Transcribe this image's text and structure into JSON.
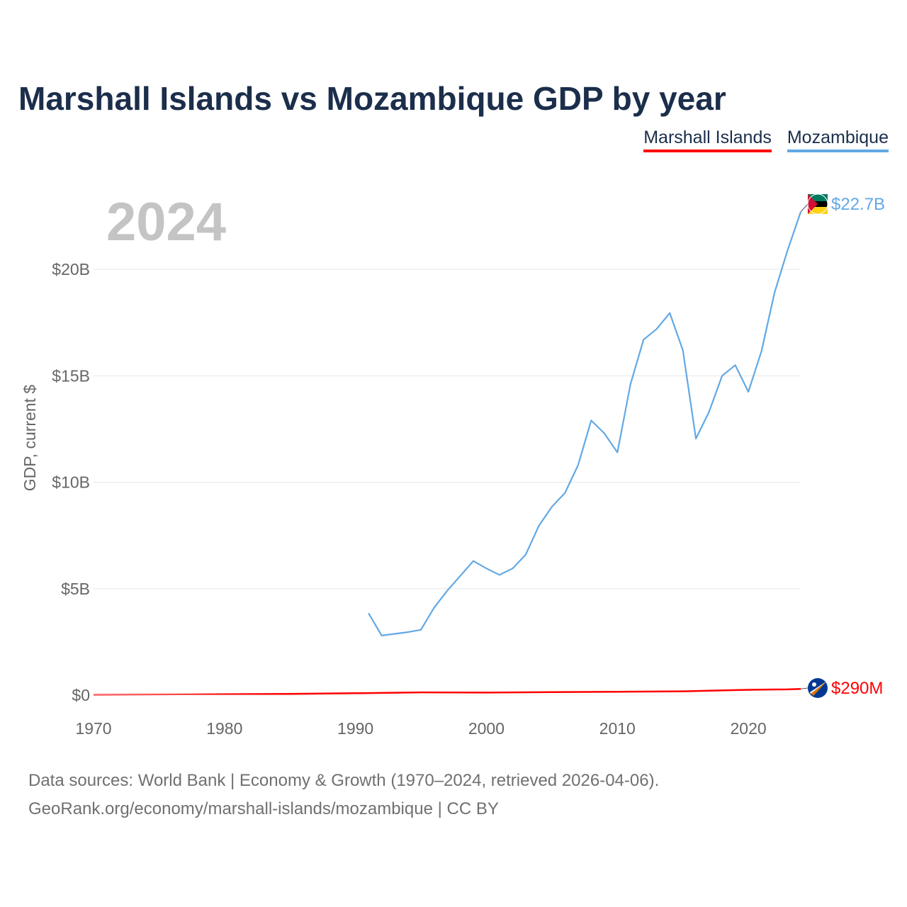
{
  "title": "Marshall Islands vs Mozambique GDP by year",
  "legend": [
    {
      "label": "Marshall Islands",
      "color": "#ff0000"
    },
    {
      "label": "Mozambique",
      "color": "#62a8e5"
    }
  ],
  "year_label": "2024",
  "source": {
    "line1": "Data sources: World Bank | Economy & Growth (1970–2024, retrieved 2026-04-06).",
    "line2": "GeoRank.org/economy/marshall-islands/mozambique | CC BY"
  },
  "chart_data": {
    "type": "line",
    "title": "Marshall Islands vs Mozambique GDP by year",
    "xlabel": "",
    "ylabel": "GDP, current $",
    "xlim": [
      1970,
      2024
    ],
    "ylim": [
      0,
      23000000000
    ],
    "x_ticks": [
      1970,
      1980,
      1990,
      2000,
      2010,
      2020
    ],
    "y_ticks": [
      {
        "value": 0,
        "label": "$0"
      },
      {
        "value": 5000000000,
        "label": "$5B"
      },
      {
        "value": 10000000000,
        "label": "$10B"
      },
      {
        "value": 15000000000,
        "label": "$15B"
      },
      {
        "value": 20000000000,
        "label": "$20B"
      }
    ],
    "grid": true,
    "series": [
      {
        "name": "Marshall Islands",
        "color": "#ff0000",
        "end_label": "$290M",
        "x": [
          1970,
          1975,
          1980,
          1985,
          1990,
          1995,
          2000,
          2005,
          2010,
          2015,
          2020,
          2021,
          2022,
          2023,
          2024
        ],
        "values": [
          10000000,
          20000000,
          40000000,
          60000000,
          90000000,
          130000000,
          120000000,
          140000000,
          160000000,
          180000000,
          250000000,
          260000000,
          265000000,
          270000000,
          290000000
        ]
      },
      {
        "name": "Mozambique",
        "color": "#62a8e5",
        "end_label": "$22.7B",
        "x": [
          1991,
          1992,
          1993,
          1994,
          1995,
          1996,
          1997,
          1998,
          1999,
          2000,
          2001,
          2002,
          2003,
          2004,
          2005,
          2006,
          2007,
          2008,
          2009,
          2010,
          2011,
          2012,
          2013,
          2014,
          2015,
          2016,
          2017,
          2018,
          2019,
          2020,
          2021,
          2022,
          2023,
          2024
        ],
        "values": [
          3850000000,
          2800000000,
          2880000000,
          2960000000,
          3070000000,
          4100000000,
          4900000000,
          5600000000,
          6300000000,
          5950000000,
          5650000000,
          5950000000,
          6600000000,
          7950000000,
          8850000000,
          9500000000,
          10800000000,
          12900000000,
          12300000000,
          11400000000,
          14600000000,
          16700000000,
          17200000000,
          17950000000,
          16200000000,
          12050000000,
          13300000000,
          15000000000,
          15500000000,
          14250000000,
          16150000000,
          18900000000,
          20900000000,
          22700000000
        ]
      }
    ]
  }
}
